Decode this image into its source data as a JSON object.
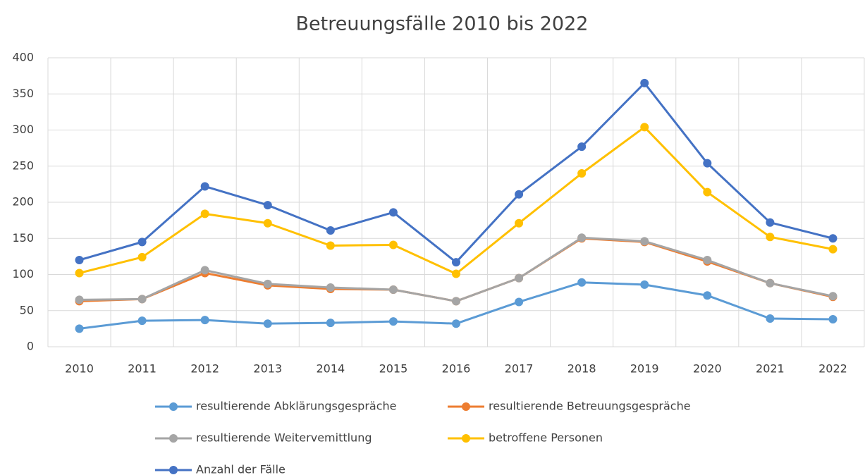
{
  "chart_data": {
    "type": "line",
    "title": "Betreuungsfälle 2010 bis 2022",
    "categories": [
      "2010",
      "2011",
      "2012",
      "2013",
      "2014",
      "2015",
      "2016",
      "2017",
      "2018",
      "2019",
      "2020",
      "2021",
      "2022"
    ],
    "series": [
      {
        "name": "resultierende Abklärungsgespräche",
        "color": "#5b9bd5",
        "values": [
          25,
          36,
          37,
          32,
          33,
          35,
          32,
          62,
          89,
          86,
          71,
          39,
          38
        ]
      },
      {
        "name": "resultierende Betreuungsgespräche",
        "color": "#ed7d31",
        "values": [
          63,
          66,
          102,
          85,
          80,
          79,
          63,
          95,
          150,
          145,
          118,
          88,
          69
        ]
      },
      {
        "name": "resultierende Weitervemittlung",
        "color": "#a5a5a5",
        "values": [
          65,
          66,
          106,
          87,
          82,
          79,
          63,
          95,
          151,
          146,
          120,
          88,
          70
        ]
      },
      {
        "name": "betroffene Personen",
        "color": "#ffc000",
        "values": [
          102,
          124,
          184,
          171,
          140,
          141,
          101,
          171,
          240,
          304,
          214,
          152,
          135
        ]
      },
      {
        "name": "Anzahl der Fälle",
        "color": "#4472c4",
        "values": [
          120,
          145,
          222,
          196,
          161,
          186,
          117,
          211,
          277,
          365,
          254,
          172,
          150
        ]
      }
    ],
    "ylim": [
      0,
      400
    ],
    "yticks": [
      0,
      50,
      100,
      150,
      200,
      250,
      300,
      350,
      400
    ],
    "grid": true
  }
}
